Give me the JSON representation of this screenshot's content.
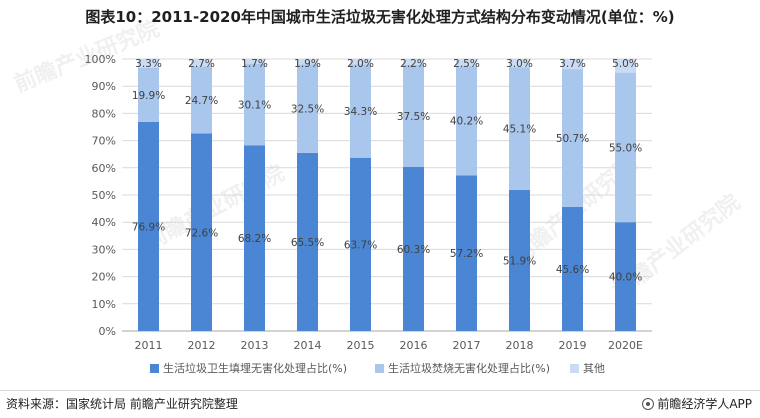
{
  "title": "图表10：2011-2020年中国城市生活垃圾无害化处理方式结构分布变动情况(单位：%)",
  "source": "资料来源：国家统计局 前瞻产业研究院整理",
  "brand": "前瞻经济学人APP",
  "watermark": "前瞻产业研究院",
  "colors": {
    "landfill": "#4a86d4",
    "incineration": "#a9c6ec",
    "other": "#c9dcf4",
    "grid": "#d9d9d9",
    "axis": "#a6a6a6",
    "text": "#595959"
  },
  "chart_data": {
    "type": "bar",
    "stacked": true,
    "percent": true,
    "categories": [
      "2011",
      "2012",
      "2013",
      "2014",
      "2015",
      "2016",
      "2017",
      "2018",
      "2019",
      "2020E"
    ],
    "series": [
      {
        "name": "生活垃圾卫生填埋无害化处理占比(%)",
        "values": [
          76.9,
          72.6,
          68.2,
          65.5,
          63.7,
          60.3,
          57.2,
          51.9,
          45.6,
          40.0
        ],
        "labels": [
          "76.9%",
          "72.6%",
          "68.2%",
          "65.5%",
          "63.7%",
          "60.3%",
          "57.2%",
          "51.9%",
          "45.6%",
          "40.0%"
        ]
      },
      {
        "name": "生活垃圾焚烧无害化处理占比(%)",
        "values": [
          19.9,
          24.7,
          30.1,
          32.5,
          34.3,
          37.5,
          40.2,
          45.1,
          50.7,
          55.0
        ],
        "labels": [
          "19.9%",
          "24.7%",
          "30.1%",
          "32.5%",
          "34.3%",
          "37.5%",
          "40.2%",
          "45.1%",
          "50.7%",
          "55.0%"
        ]
      },
      {
        "name": "其他",
        "values": [
          3.3,
          2.7,
          1.7,
          1.9,
          2.0,
          2.2,
          2.5,
          3.0,
          3.7,
          5.0
        ],
        "labels": [
          "3.3%",
          "2.7%",
          "1.7%",
          "1.9%",
          "2.0%",
          "2.2%",
          "2.5%",
          "3.0%",
          "3.7%",
          "5.0%"
        ]
      }
    ],
    "y_ticks": [
      "0%",
      "10%",
      "20%",
      "30%",
      "40%",
      "50%",
      "60%",
      "70%",
      "80%",
      "90%",
      "100%"
    ],
    "ylim": [
      0,
      100
    ],
    "grid": true,
    "legend_position": "bottom"
  }
}
